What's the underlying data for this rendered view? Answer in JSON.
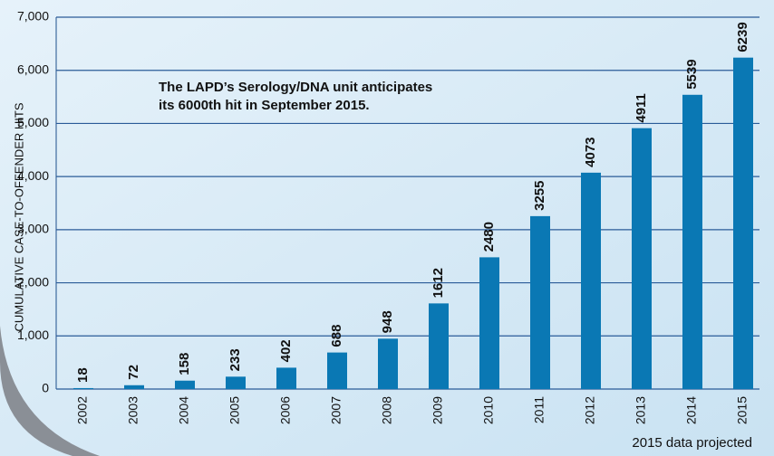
{
  "chart_data": {
    "type": "bar",
    "y_axis_label": "CUMULATIVE CASE-TO-OFFENDER HITS",
    "annotation": [
      "The LAPD’s Serology/DNA unit anticipates",
      "its 6000th hit in September 2015."
    ],
    "footnote": "2015 data projected",
    "categories": [
      "2002",
      "2003",
      "2004",
      "2005",
      "2006",
      "2007",
      "2008",
      "2009",
      "2010",
      "2011",
      "2012",
      "2013",
      "2014",
      "2015"
    ],
    "values": [
      18,
      72,
      158,
      233,
      402,
      688,
      948,
      1612,
      2480,
      3255,
      4073,
      4911,
      5539,
      6239
    ],
    "color": "#0a78b4",
    "ylim": [
      0,
      7000
    ],
    "yticks": [
      0,
      {
        "value": 1000,
        "label": "1,000"
      },
      {
        "value": 2000,
        "label": "2,000"
      },
      {
        "value": 3000,
        "label": "3,000"
      },
      {
        "value": 4000,
        "label": "4,000"
      },
      {
        "value": 5000,
        "label": "5,000"
      },
      {
        "value": 6000,
        "label": "6,000"
      },
      {
        "value": 7000,
        "label": "7,000"
      }
    ],
    "grid": true
  }
}
